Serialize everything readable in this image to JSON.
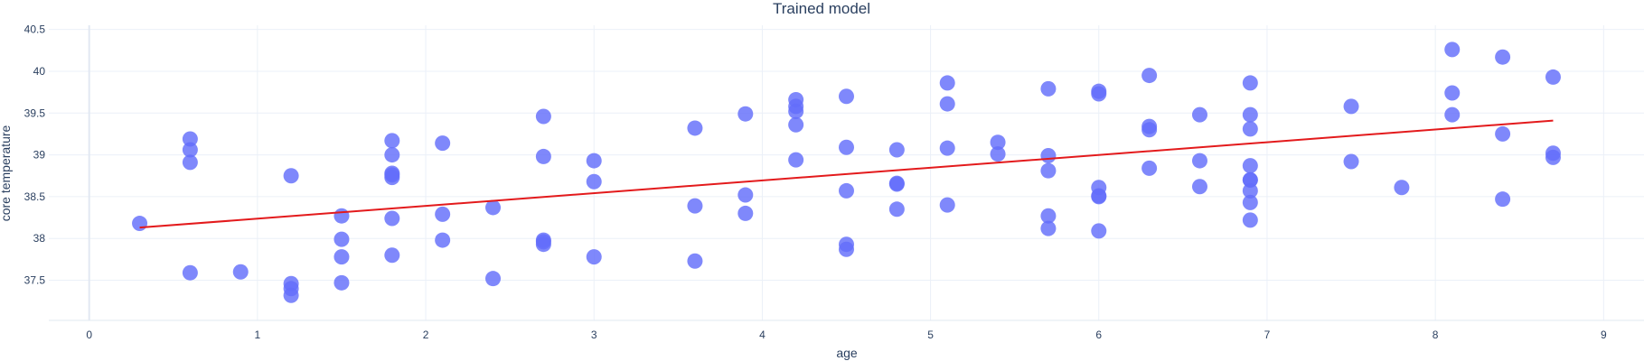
{
  "chart_data": {
    "type": "scatter",
    "title": "Trained model",
    "xlabel": "age",
    "ylabel": "core temperature",
    "xlim": [
      -0.24,
      9.24
    ],
    "ylim": [
      37.02,
      40.55
    ],
    "x_ticks": [
      0,
      1,
      2,
      3,
      4,
      5,
      6,
      7,
      8,
      9
    ],
    "y_ticks": [
      37.5,
      38,
      38.5,
      39,
      39.5,
      40,
      40.5
    ],
    "y_tick_labels": [
      "37.5",
      "38",
      "38.5",
      "39",
      "39.5",
      "40",
      "40.5"
    ],
    "grid": true,
    "legend": "none",
    "colors": {
      "points": "#636efa",
      "line": "#e31a1c",
      "grid": "#ebf0f8",
      "zeroline": "#e2e8f2",
      "text": "#2a3f5f"
    },
    "series": [
      {
        "kind": "markers",
        "x": [
          0.3,
          0.6,
          0.6,
          0.6,
          0.6,
          0.9,
          1.2,
          1.2,
          1.2,
          1.2,
          1.5,
          1.5,
          1.5,
          1.5,
          1.8,
          1.8,
          1.8,
          1.8,
          1.8,
          1.8,
          1.8,
          2.1,
          2.1,
          2.1,
          2.4,
          2.4,
          2.7,
          2.7,
          2.7,
          2.7,
          2.7,
          3.0,
          3.0,
          3.0,
          3.6,
          3.6,
          3.6,
          3.9,
          3.9,
          3.9,
          4.2,
          4.2,
          4.2,
          4.2,
          4.2,
          4.5,
          4.5,
          4.5,
          4.5,
          4.5,
          4.8,
          4.8,
          4.8,
          4.8,
          5.1,
          5.1,
          5.1,
          5.1,
          5.4,
          5.4,
          5.7,
          5.7,
          5.7,
          5.7,
          5.7,
          6.0,
          6.0,
          6.0,
          6.0,
          6.0,
          6.0,
          6.3,
          6.3,
          6.3,
          6.3,
          6.6,
          6.6,
          6.6,
          6.9,
          6.9,
          6.9,
          6.9,
          6.9,
          6.9,
          6.9,
          6.9,
          6.9,
          7.5,
          7.5,
          7.8,
          8.1,
          8.1,
          8.1,
          8.4,
          8.4,
          8.4,
          8.7,
          8.7,
          8.7
        ],
        "y": [
          38.18,
          39.19,
          39.06,
          38.91,
          37.59,
          37.6,
          38.75,
          37.46,
          37.4,
          37.32,
          38.27,
          37.99,
          37.78,
          37.47,
          39.17,
          39.0,
          38.78,
          38.73,
          38.24,
          37.8,
          38.76,
          39.14,
          38.29,
          37.98,
          38.37,
          37.52,
          39.46,
          38.98,
          37.98,
          37.93,
          37.96,
          38.93,
          38.68,
          37.78,
          39.32,
          38.39,
          37.73,
          39.49,
          38.52,
          38.3,
          39.66,
          39.58,
          39.52,
          39.36,
          38.94,
          39.7,
          39.09,
          38.57,
          37.93,
          37.87,
          39.06,
          38.65,
          38.66,
          38.35,
          39.86,
          39.61,
          39.08,
          38.4,
          39.15,
          39.01,
          39.79,
          38.99,
          38.81,
          38.27,
          38.12,
          39.76,
          39.73,
          38.61,
          38.51,
          38.5,
          38.09,
          39.95,
          39.34,
          39.3,
          38.84,
          39.48,
          38.93,
          38.62,
          39.86,
          39.48,
          39.31,
          38.87,
          38.7,
          38.57,
          38.43,
          38.22,
          38.7,
          39.58,
          38.92,
          38.61,
          40.26,
          39.74,
          39.48,
          40.17,
          39.25,
          38.47,
          39.93,
          39.02,
          38.97
        ]
      },
      {
        "kind": "line",
        "x": [
          0.3,
          8.7
        ],
        "y": [
          38.13,
          39.41
        ]
      }
    ]
  }
}
